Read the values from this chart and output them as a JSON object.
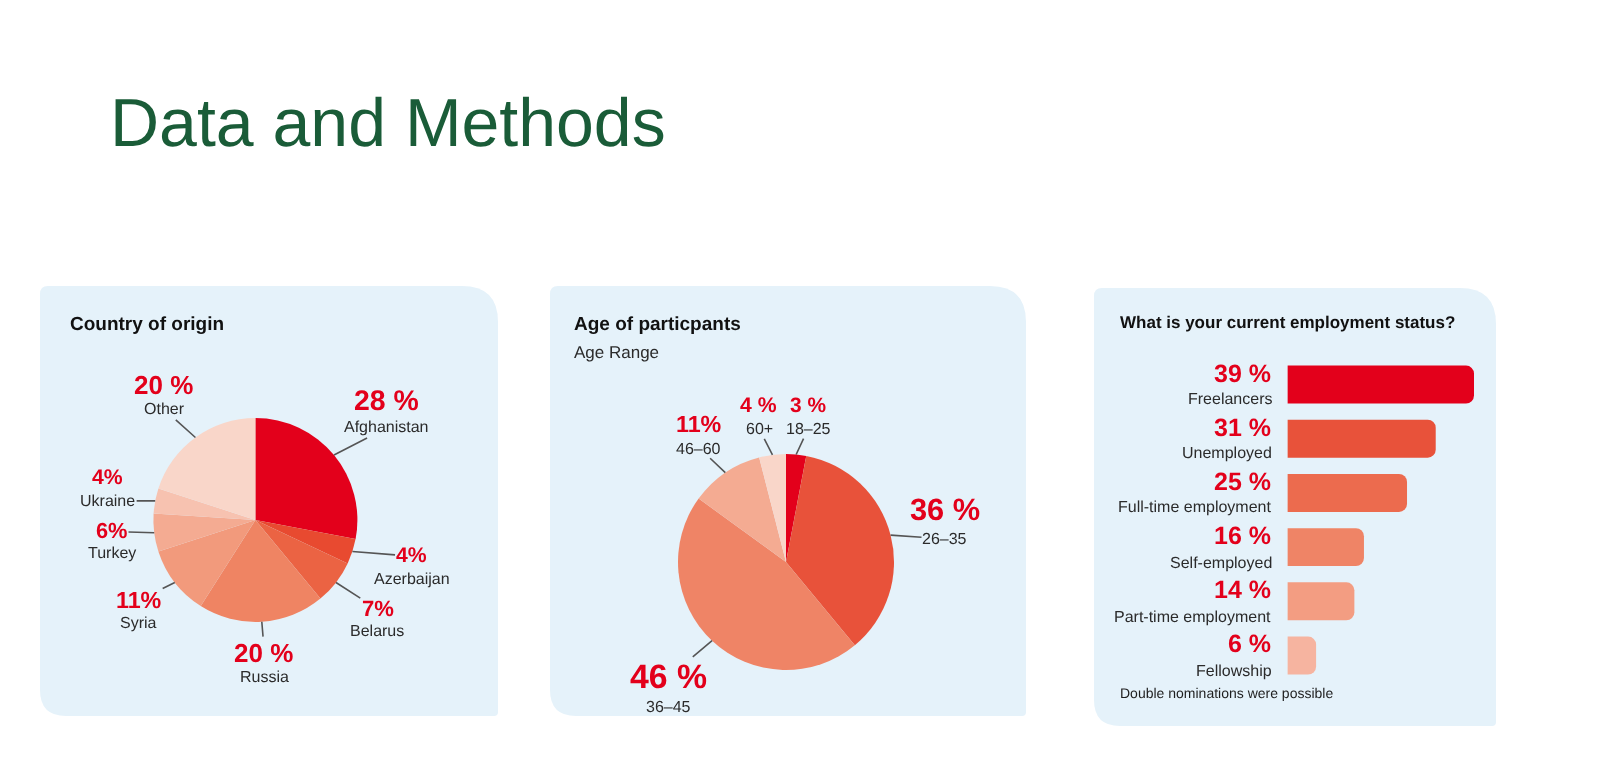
{
  "chart_data": [
    {
      "type": "other",
      "title": "Data and Methods"
    },
    {
      "type": "pie",
      "title": "Country of origin",
      "categories": [
        "Afghanistan",
        "Azerbaijan",
        "Belarus",
        "Russia",
        "Syria",
        "Turkey",
        "Ukraine",
        "Other"
      ],
      "values": [
        28,
        4,
        7,
        20,
        11,
        6,
        4,
        20
      ],
      "colors": [
        "#e3001b",
        "#e84a30",
        "#eb6343",
        "#ef8463",
        "#f29a7c",
        "#f4ab92",
        "#f7c2b0",
        "#f9d6c9"
      ],
      "value_labels": [
        "28 %",
        "4%",
        "7%",
        "20 %",
        "11%",
        "6%",
        "4%",
        "20 %"
      ]
    },
    {
      "type": "pie",
      "title": "Age of particpants",
      "subtitle": "Age Range",
      "categories": [
        "18–25",
        "26–35",
        "36–45",
        "46–60",
        "60+"
      ],
      "values": [
        3,
        36,
        46,
        11,
        4
      ],
      "colors": [
        "#e3001b",
        "#e8523a",
        "#ef8466",
        "#f4ab92",
        "#f9d6c9"
      ],
      "value_labels": [
        "3 %",
        "36 %",
        "46 %",
        "11%",
        "4 %"
      ]
    },
    {
      "type": "bar",
      "orientation": "horizontal",
      "title": "What is your current employment status?",
      "categories": [
        "Freelancers",
        "Unemployed",
        "Full-time employment",
        "Self-employed",
        "Part-time employment",
        "Fellowship"
      ],
      "values": [
        39,
        31,
        25,
        16,
        14,
        6
      ],
      "colors": [
        "#e3001b",
        "#e8523a",
        "#ec6b4e",
        "#ef8466",
        "#f39d82",
        "#f6b4a0"
      ],
      "value_labels": [
        "39 %",
        "31 %",
        "25 %",
        "16 %",
        "14 %",
        "6 %"
      ],
      "annotations": [
        "Double nominations were possible"
      ]
    }
  ]
}
